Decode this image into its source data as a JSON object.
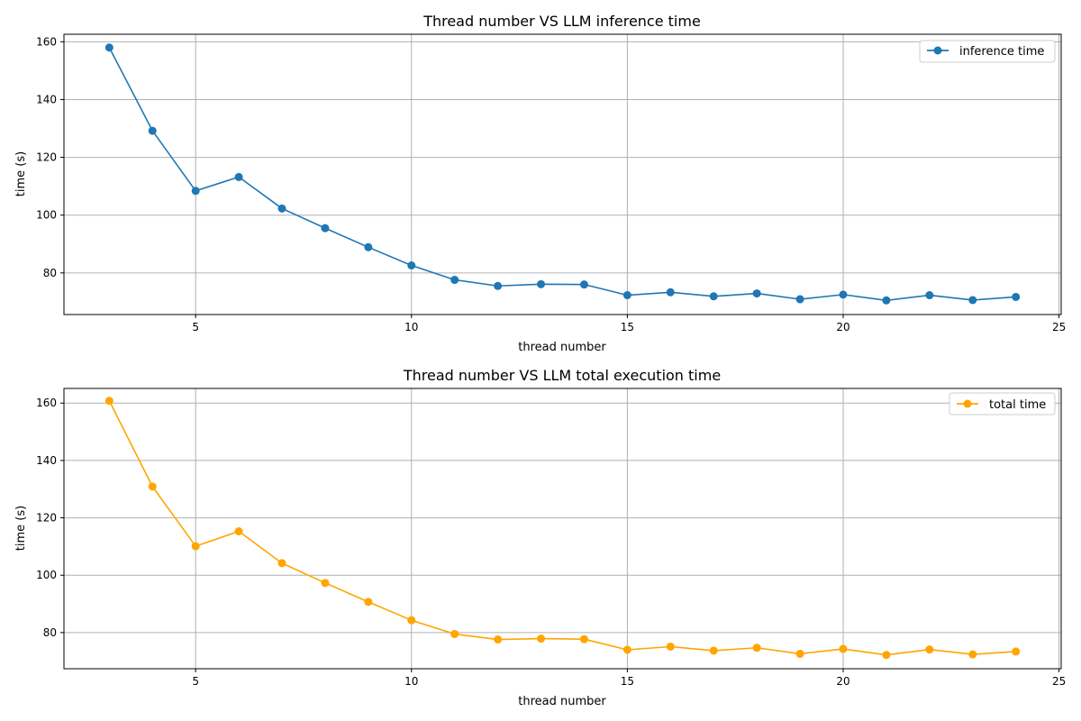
{
  "colors": {
    "series1": "#1f77b4",
    "series2": "#ffa500",
    "grid": "#b0b0b0",
    "axis": "#000000",
    "legend_border": "#cccccc"
  },
  "chart_data": [
    {
      "type": "line",
      "title": "Thread number VS LLM inference time",
      "xlabel": "thread number",
      "ylabel": "time (s)",
      "xlim": [
        1.95,
        25.05
      ],
      "ylim": [
        65.6,
        162.6
      ],
      "xticks": [
        5,
        10,
        15,
        20,
        25
      ],
      "yticks": [
        80,
        100,
        120,
        140,
        160
      ],
      "grid": true,
      "legend_position": "top-right",
      "series": [
        {
          "name": "inference time",
          "color": "#1f77b4",
          "marker": "circle",
          "x": [
            3,
            4,
            5,
            6,
            7,
            8,
            9,
            10,
            11,
            12,
            13,
            14,
            15,
            16,
            17,
            18,
            19,
            20,
            21,
            22,
            23,
            24
          ],
          "y": [
            158,
            129.2,
            108.4,
            113.2,
            102.3,
            95.5,
            88.9,
            82.6,
            77.6,
            75.5,
            76.1,
            76,
            72.3,
            73.3,
            71.9,
            72.9,
            70.9,
            72.5,
            70.5,
            72.3,
            70.6,
            71.7
          ]
        }
      ]
    },
    {
      "type": "line",
      "title": "Thread number VS LLM total execution time",
      "xlabel": "thread number",
      "ylabel": "time (s)",
      "xlim": [
        1.95,
        25.05
      ],
      "ylim": [
        67.4,
        165.1
      ],
      "xticks": [
        5,
        10,
        15,
        20,
        25
      ],
      "yticks": [
        80,
        100,
        120,
        140,
        160
      ],
      "grid": true,
      "legend_position": "top-right",
      "series": [
        {
          "name": "total time",
          "color": "#ffa500",
          "marker": "circle",
          "x": [
            3,
            4,
            5,
            6,
            7,
            8,
            9,
            10,
            11,
            12,
            13,
            14,
            15,
            16,
            17,
            18,
            19,
            20,
            21,
            22,
            23,
            24
          ],
          "y": [
            160.8,
            130.9,
            110.1,
            115.3,
            104.2,
            97.3,
            90.7,
            84.3,
            79.5,
            77.6,
            77.9,
            77.7,
            74,
            75.1,
            73.7,
            74.7,
            72.6,
            74.3,
            72.2,
            74.1,
            72.4,
            73.4
          ]
        }
      ]
    }
  ]
}
